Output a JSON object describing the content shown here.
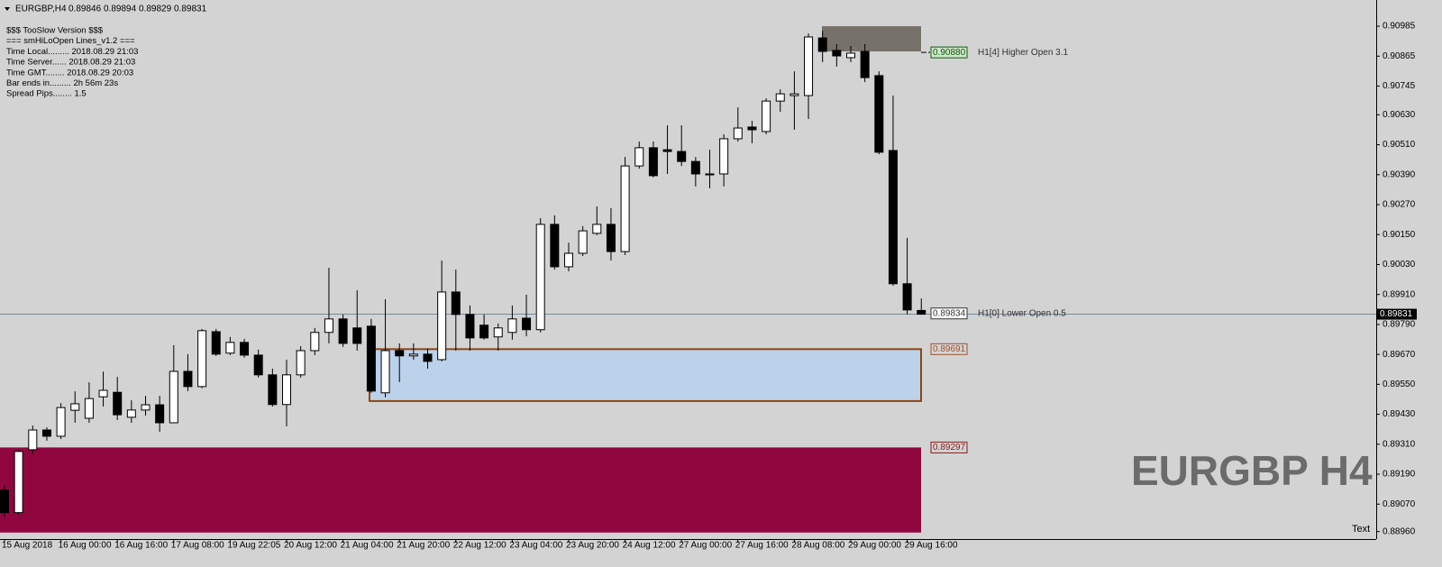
{
  "chart_data": {
    "type": "candlestick",
    "symbol": "EURGBP,H4",
    "ohlc": [
      0.89846,
      0.89894,
      0.89829,
      0.89831
    ],
    "info": [
      "$$$ TooSlow Version $$$",
      "=== smHiLoOpen Lines_v1.2 ===",
      "Time Local......... 2018.08.29 21:03",
      "Time Server...... 2018.08.29 21:03",
      "Time GMT........ 2018.08.29 20:03",
      "Bar ends in......... 2h 56m 23s",
      "Spread Pips........ 1.5"
    ],
    "watermark": "EURGBP H4",
    "corner_text": "Text",
    "categories": [
      "15 Aug 2018",
      null,
      null,
      null,
      "16 Aug 00:00",
      null,
      null,
      null,
      "16 Aug 16:00",
      null,
      null,
      null,
      "17 Aug 08:00",
      null,
      null,
      null,
      "19 Aug 22:05",
      null,
      null,
      null,
      "20 Aug 12:00",
      null,
      null,
      null,
      "21 Aug 04:00",
      null,
      null,
      null,
      "21 Aug 20:00",
      null,
      null,
      null,
      "22 Aug 12:00",
      null,
      null,
      null,
      "23 Aug 04:00",
      null,
      null,
      null,
      "23 Aug 20:00",
      null,
      null,
      null,
      "24 Aug 12:00",
      null,
      null,
      null,
      "27 Aug 00:00",
      null,
      null,
      null,
      "27 Aug 16:00",
      null,
      null,
      null,
      "28 Aug 08:00",
      null,
      null,
      null,
      "29 Aug 00:00",
      null,
      null,
      null,
      "29 Aug 16:00",
      null
    ],
    "open": [
      0.89126,
      0.89036,
      0.89288,
      0.89367,
      0.89342,
      0.89446,
      0.89414,
      0.895,
      0.89518,
      0.89418,
      0.89447,
      0.89468,
      0.89396,
      0.89602,
      0.89541,
      0.89761,
      0.89675,
      0.89718,
      0.89667,
      0.89588,
      0.89469,
      0.89588,
      0.89685,
      0.89758,
      0.89812,
      0.89776,
      0.89783,
      0.89516,
      0.89685,
      0.89664,
      0.89671,
      0.89649,
      0.8992,
      0.8983,
      0.89787,
      0.8974,
      0.89758,
      0.89815,
      0.89769,
      0.90191,
      0.90021,
      0.90075,
      0.90155,
      0.90191,
      0.90082,
      0.90425,
      0.90498,
      0.9049,
      0.90483,
      0.90443,
      0.90393,
      0.90393,
      0.90534,
      0.90581,
      0.90563,
      0.90685,
      0.90707,
      0.90707,
      0.90938,
      0.90888,
      0.90859,
      0.90884,
      0.90787,
      0.90487,
      0.89953,
      0.89846
    ],
    "high": [
      0.89144,
      0.89288,
      0.89385,
      0.89378,
      0.89475,
      0.89522,
      0.89558,
      0.89601,
      0.8958,
      0.89486,
      0.89504,
      0.89504,
      0.89707,
      0.89671,
      0.89772,
      0.89772,
      0.8974,
      0.89732,
      0.89689,
      0.89613,
      0.89649,
      0.89703,
      0.89776,
      0.90017,
      0.8983,
      0.89927,
      0.89812,
      0.89891,
      0.89714,
      0.89714,
      0.89693,
      0.90046,
      0.9001,
      0.89866,
      0.8983,
      0.89794,
      0.89866,
      0.89909,
      0.90216,
      0.90227,
      0.90118,
      0.90184,
      0.90263,
      0.90256,
      0.90461,
      0.90523,
      0.90523,
      0.90588,
      0.90588,
      0.90461,
      0.9049,
      0.90552,
      0.9066,
      0.90606,
      0.90696,
      0.90732,
      0.90804,
      0.90956,
      0.90967,
      0.90913,
      0.90906,
      0.90913,
      0.90804,
      0.90707,
      0.90137,
      0.89894
    ],
    "low": [
      0.89018,
      0.89029,
      0.8927,
      0.89324,
      0.89331,
      0.89396,
      0.89396,
      0.89461,
      0.89407,
      0.89396,
      0.89425,
      0.8936,
      0.89396,
      0.89523,
      0.89534,
      0.89664,
      0.89667,
      0.89657,
      0.89577,
      0.89461,
      0.89382,
      0.89577,
      0.89667,
      0.89714,
      0.897,
      0.89685,
      0.89516,
      0.89498,
      0.89559,
      0.89649,
      0.89613,
      0.89642,
      0.89685,
      0.89685,
      0.89729,
      0.89685,
      0.89729,
      0.89743,
      0.89758,
      0.9001,
      0.90003,
      0.90064,
      0.90148,
      0.90046,
      0.90068,
      0.90414,
      0.90379,
      0.90393,
      0.90425,
      0.90343,
      0.90336,
      0.90343,
      0.90523,
      0.90516,
      0.90552,
      0.90642,
      0.9057,
      0.90613,
      0.90841,
      0.90823,
      0.90841,
      0.90761,
      0.90472,
      0.89945,
      0.8983,
      0.89829
    ],
    "close": [
      0.89036,
      0.89281,
      0.89367,
      0.89342,
      0.89457,
      0.89472,
      0.89493,
      0.89526,
      0.89428,
      0.89447,
      0.89468,
      0.89396,
      0.89602,
      0.89541,
      0.89765,
      0.89671,
      0.89718,
      0.89667,
      0.89588,
      0.89469,
      0.89588,
      0.89685,
      0.89758,
      0.89812,
      0.89714,
      0.89714,
      0.89523,
      0.89685,
      0.89664,
      0.89671,
      0.89642,
      0.8992,
      0.8983,
      0.89736,
      0.89736,
      0.89776,
      0.89812,
      0.89769,
      0.90191,
      0.90021,
      0.90075,
      0.90165,
      0.90191,
      0.90082,
      0.90425,
      0.90498,
      0.90386,
      0.90483,
      0.90443,
      0.90393,
      0.9039,
      0.90534,
      0.90577,
      0.9057,
      0.90685,
      0.90714,
      0.90714,
      0.90942,
      0.90884,
      0.90866,
      0.90877,
      0.90779,
      0.9048,
      0.89953,
      0.89848,
      0.89831
    ],
    "bull_color": "#ffffff",
    "bear_color": "#000000",
    "ylim": [
      0.8893,
      0.9109
    ],
    "yticks": [
      0.90985,
      0.90865,
      0.90745,
      {
        "value": 0.9063,
        "label": "0.90630"
      },
      {
        "value": 0.9051,
        "label": "0.90510"
      },
      {
        "value": 0.9039,
        "label": "0.90390"
      },
      {
        "value": 0.9027,
        "label": "0.90270"
      },
      {
        "value": 0.9015,
        "label": "0.90150"
      },
      {
        "value": 0.9003,
        "label": "0.90030"
      },
      {
        "value": 0.8991,
        "label": "0.89910"
      },
      {
        "value": 0.8979,
        "label": "0.89790"
      },
      {
        "value": 0.8967,
        "label": "0.89670"
      },
      {
        "value": 0.8955,
        "label": "0.89550"
      },
      {
        "value": 0.8943,
        "label": "0.89430"
      },
      {
        "value": 0.8931,
        "label": "0.89310"
      },
      {
        "value": 0.8919,
        "label": "0.89190"
      },
      {
        "value": 0.8907,
        "label": "0.89070"
      },
      {
        "value": 0.8896,
        "label": "0.88960"
      }
    ],
    "bid": 0.89831,
    "zones": [
      {
        "top": 0.90985,
        "bottom": 0.90884,
        "color": "#767169"
      },
      {
        "top": 0.89691,
        "bottom": 0.89483,
        "color": "#bcd1ea",
        "border": "#8b4513"
      },
      {
        "top": 0.89297,
        "bottom": 0.88956,
        "color": "#8f073e"
      }
    ],
    "levels": [
      {
        "value": 0.9088,
        "label": "0.90880",
        "text": "H1[4] Higher Open 3.1",
        "color": "#0d5a10",
        "fill": "#cfe6c8"
      },
      {
        "value": 0.89834,
        "text": "H1[0] Lower Open 0.5",
        "color": "#333333",
        "fill": "#ffffff"
      },
      {
        "value": 0.89691,
        "color": "#a0522d"
      },
      {
        "value": 0.89297,
        "color": "#8b1a1a"
      }
    ]
  }
}
